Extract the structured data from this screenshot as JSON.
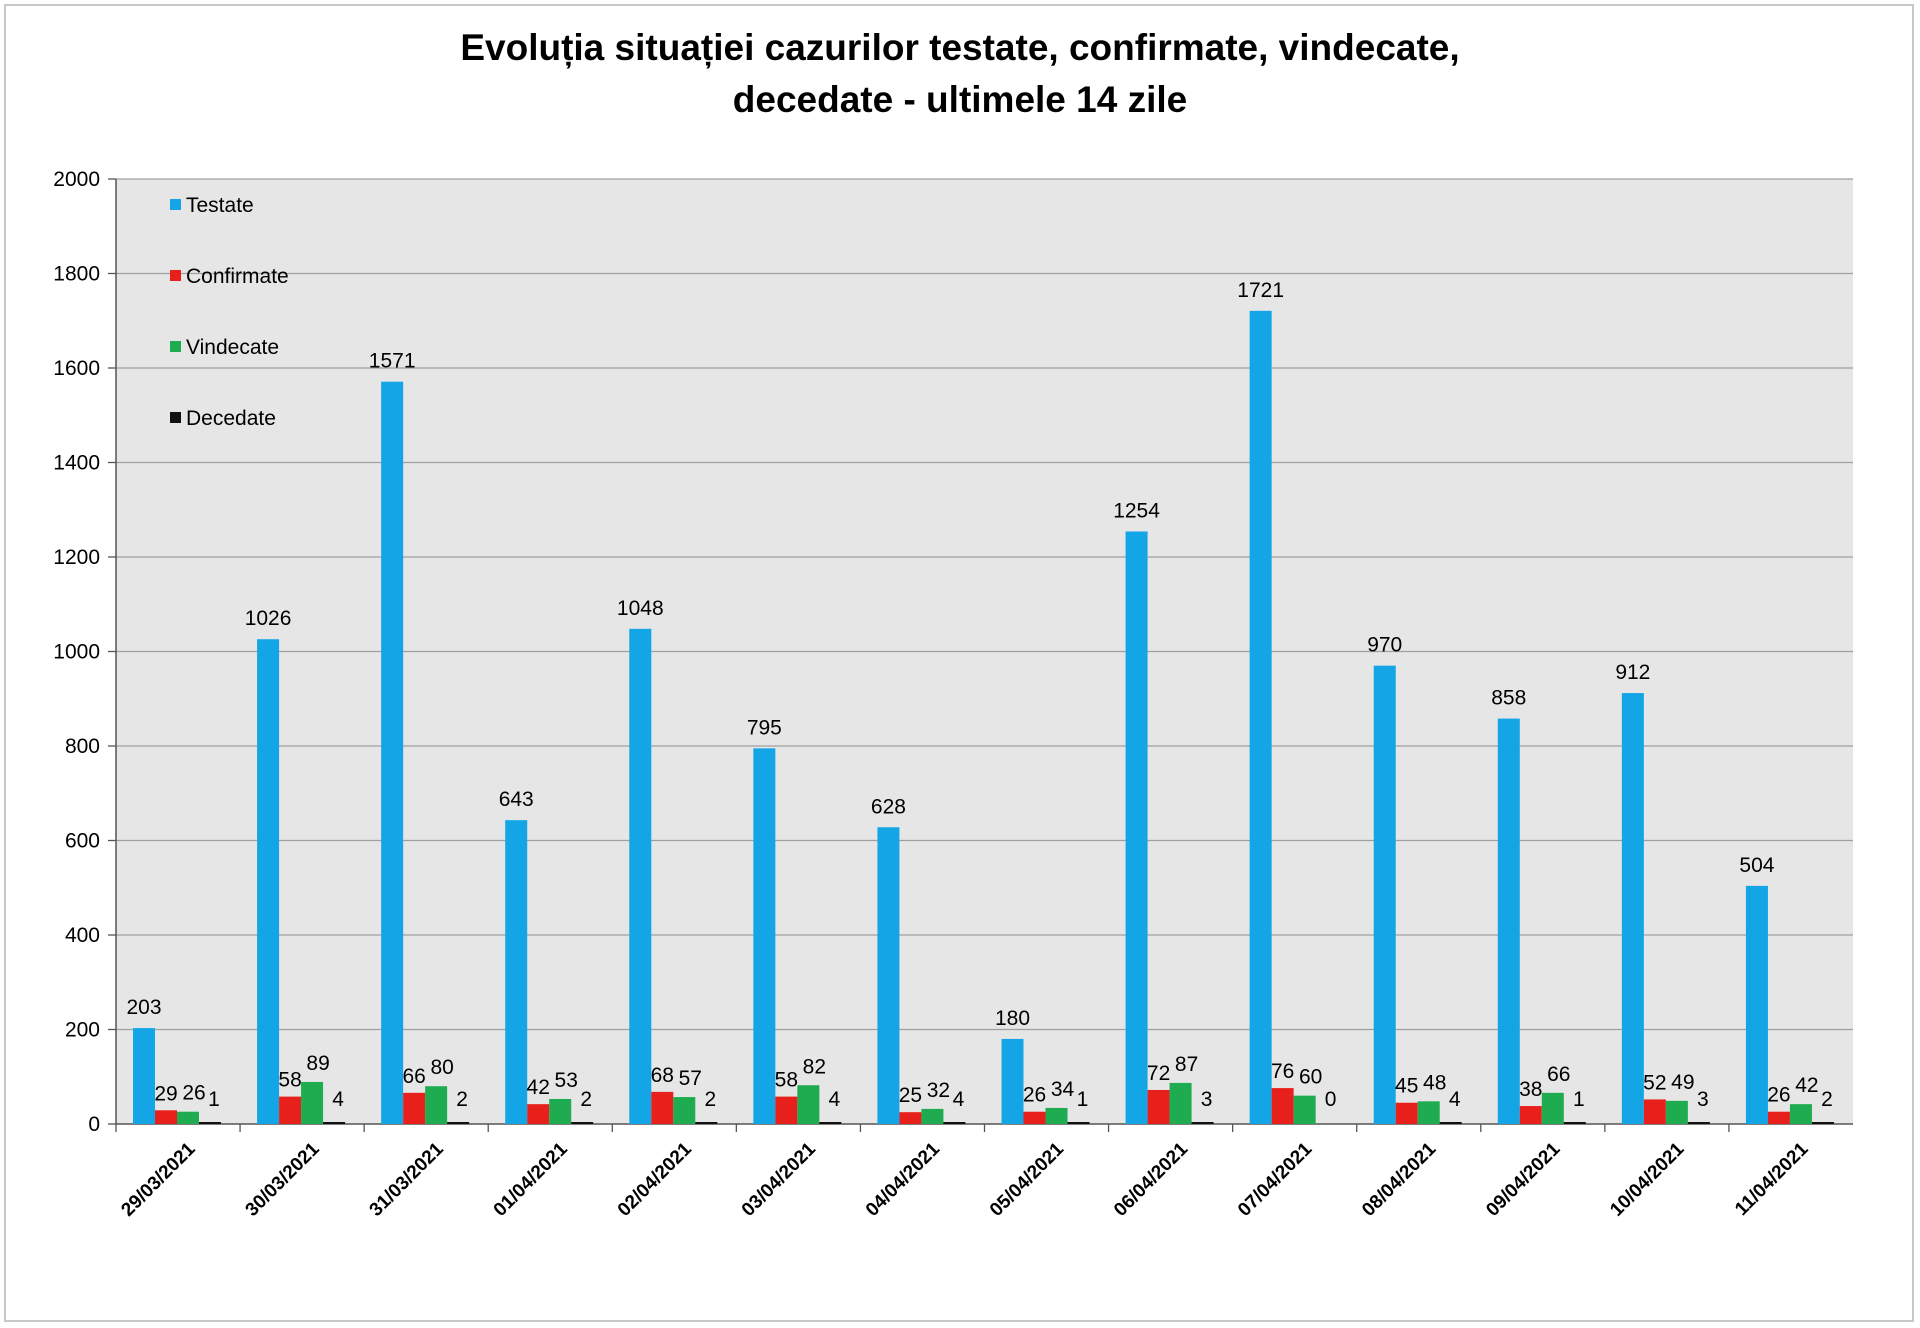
{
  "chart_data": {
    "type": "bar",
    "title": "Evoluția situației cazurilor testate, confirmate, vindecate, decedate -  ultimele 14 zile",
    "title_lines": [
      "Evoluția situației cazurilor testate, confirmate, vindecate,",
      "decedate -  ultimele 14 zile"
    ],
    "xlabel": "",
    "ylabel": "",
    "ylim": [
      0,
      2000
    ],
    "yticks": [
      0,
      200,
      400,
      600,
      800,
      1000,
      1200,
      1400,
      1600,
      1800,
      2000
    ],
    "grid": true,
    "legend_position": "top-left",
    "categories": [
      "29/03/2021",
      "30/03/2021",
      "31/03/2021",
      "01/04/2021",
      "02/04/2021",
      "03/04/2021",
      "04/04/2021",
      "05/04/2021",
      "06/04/2021",
      "07/04/2021",
      "08/04/2021",
      "09/04/2021",
      "10/04/2021",
      "11/04/2021"
    ],
    "series": [
      {
        "name": "Testate",
        "color": "#13a5e6",
        "values": [
          203,
          1026,
          1571,
          643,
          1048,
          795,
          628,
          180,
          1254,
          1721,
          970,
          858,
          912,
          504
        ]
      },
      {
        "name": "Confirmate",
        "color": "#e8201c",
        "values": [
          29,
          58,
          66,
          42,
          68,
          58,
          25,
          26,
          72,
          76,
          45,
          38,
          52,
          26
        ]
      },
      {
        "name": "Vindecate",
        "color": "#1fab4f",
        "values": [
          26,
          89,
          80,
          53,
          57,
          82,
          32,
          34,
          87,
          60,
          48,
          66,
          49,
          42
        ]
      },
      {
        "name": "Decedate",
        "color": "#111111",
        "values": [
          1,
          4,
          2,
          2,
          2,
          4,
          4,
          1,
          3,
          0,
          4,
          1,
          3,
          2
        ]
      }
    ],
    "plot_background": "#e6e6e6",
    "gridline_color": "#a0a0a0"
  }
}
